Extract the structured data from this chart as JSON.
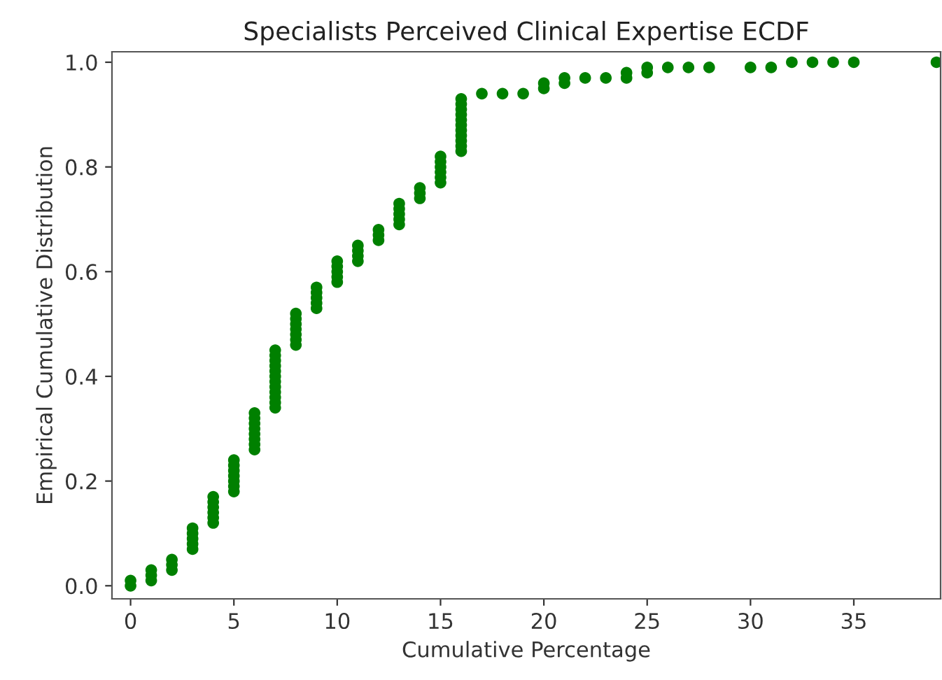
{
  "chart_data": {
    "type": "scatter",
    "title": "Specialists Perceived Clinical Expertise ECDF",
    "xlabel": "Cumulative Percentage",
    "ylabel": "Empirical Cumulative Distribution",
    "x": [
      0,
      0,
      1,
      1,
      1,
      2,
      2,
      2,
      3,
      3,
      3,
      3,
      3,
      4,
      4,
      4,
      4,
      4,
      4,
      5,
      5,
      5,
      5,
      5,
      5,
      5,
      6,
      6,
      6,
      6,
      6,
      6,
      6,
      6,
      7,
      7,
      7,
      7,
      7,
      7,
      7,
      7,
      7,
      7,
      7,
      7,
      8,
      8,
      8,
      8,
      8,
      8,
      8,
      9,
      9,
      9,
      9,
      9,
      10,
      10,
      10,
      10,
      10,
      11,
      11,
      11,
      11,
      12,
      12,
      12,
      13,
      13,
      13,
      13,
      13,
      14,
      14,
      14,
      15,
      15,
      15,
      15,
      15,
      15,
      16,
      16,
      16,
      16,
      16,
      16,
      16,
      16,
      16,
      16,
      16,
      17,
      18,
      19,
      20,
      20,
      21,
      21,
      22,
      23,
      24,
      24,
      25,
      25,
      26,
      27,
      28,
      30,
      31,
      32,
      33,
      34,
      35,
      39
    ],
    "series": [
      {
        "color": "#008000",
        "values": [
          0.0,
          0.01,
          0.01,
          0.02,
          0.03,
          0.03,
          0.04,
          0.05,
          0.07,
          0.08,
          0.09,
          0.1,
          0.11,
          0.12,
          0.13,
          0.14,
          0.15,
          0.16,
          0.17,
          0.18,
          0.19,
          0.2,
          0.21,
          0.22,
          0.23,
          0.24,
          0.26,
          0.27,
          0.28,
          0.29,
          0.3,
          0.31,
          0.32,
          0.33,
          0.34,
          0.35,
          0.36,
          0.37,
          0.38,
          0.39,
          0.4,
          0.41,
          0.42,
          0.43,
          0.44,
          0.45,
          0.46,
          0.47,
          0.48,
          0.49,
          0.5,
          0.51,
          0.52,
          0.53,
          0.54,
          0.55,
          0.56,
          0.57,
          0.58,
          0.59,
          0.6,
          0.61,
          0.62,
          0.62,
          0.63,
          0.64,
          0.65,
          0.66,
          0.67,
          0.68,
          0.69,
          0.7,
          0.71,
          0.72,
          0.73,
          0.74,
          0.75,
          0.76,
          0.77,
          0.78,
          0.79,
          0.8,
          0.81,
          0.82,
          0.83,
          0.84,
          0.85,
          0.86,
          0.87,
          0.88,
          0.89,
          0.9,
          0.91,
          0.92,
          0.93,
          0.94,
          0.94,
          0.94,
          0.95,
          0.96,
          0.96,
          0.97,
          0.97,
          0.97,
          0.97,
          0.98,
          0.98,
          0.99,
          0.99,
          0.99,
          0.99,
          0.99,
          0.99,
          1.0,
          1.0,
          1.0,
          1.0,
          1.0
        ]
      }
    ],
    "xlim": [
      -0.9,
      39.2
    ],
    "ylim": [
      -0.025,
      1.02
    ],
    "xticks": [
      0,
      5,
      10,
      15,
      20,
      25,
      30,
      35
    ],
    "yticks": [
      {
        "value": 0,
        "label": "0.0"
      },
      {
        "value": 0.2,
        "label": "0.2"
      },
      {
        "value": 0.4,
        "label": "0.4"
      },
      {
        "value": 0.6,
        "label": "0.6"
      },
      {
        "value": 0.8,
        "label": "0.8"
      },
      {
        "value": 1,
        "label": "1.0"
      }
    ],
    "marker": "circle",
    "grid": false
  }
}
